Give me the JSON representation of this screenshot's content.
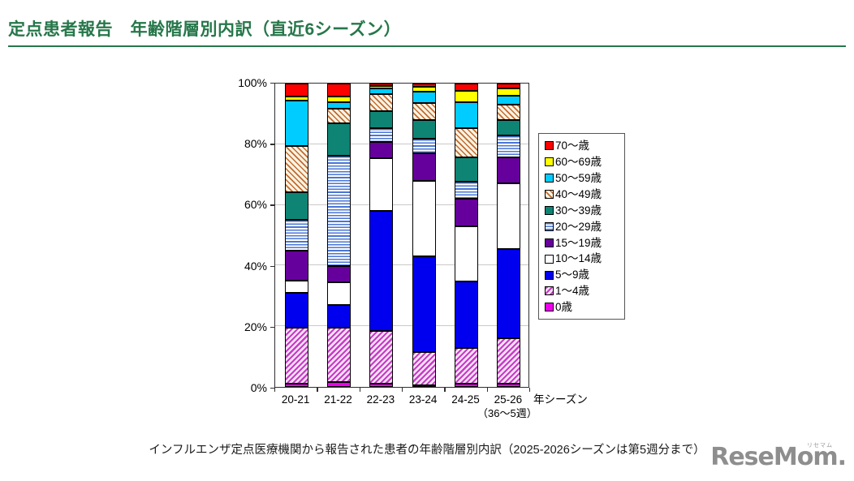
{
  "header": {
    "title": "定点患者報告　年齢階層別内訳（直近6シーズン）",
    "accent_color": "#26774A"
  },
  "chart_data": {
    "type": "bar",
    "stacked": true,
    "unit": "%",
    "ylim": [
      0,
      100
    ],
    "grid": true,
    "legend_position": "right",
    "categories": [
      "20-21",
      "21-22",
      "22-23",
      "23-24",
      "24-25",
      "25-26"
    ],
    "x_axis_suffix": "年シーズン",
    "x_axis_note": "（36～5週）",
    "y_tick_values": [
      0,
      20,
      40,
      60,
      80,
      100
    ],
    "y_tick_labels": [
      "0%",
      "20%",
      "40%",
      "60%",
      "80%",
      "100%"
    ],
    "series_bottom_to_top": [
      {
        "name": "0歳",
        "pattern": "solid",
        "color": "#EE00EE",
        "values": [
          1.2,
          1.7,
          1.0,
          0.6,
          1.2,
          1.2
        ]
      },
      {
        "name": "1～4歳",
        "pattern": "diag-down",
        "stripe": "#C73BC7",
        "bg": "#F8E4F8",
        "values": [
          18.2,
          17.7,
          17.5,
          10.9,
          11.7,
          14.8
        ]
      },
      {
        "name": "5～9歳",
        "pattern": "solid",
        "color": "#0000EE",
        "values": [
          11.6,
          7.6,
          39.5,
          31.5,
          22.0,
          29.5
        ]
      },
      {
        "name": "10～14歳",
        "pattern": "solid",
        "color": "#FFFFFF",
        "values": [
          4.0,
          7.5,
          17.5,
          25.0,
          18.0,
          21.5
        ]
      },
      {
        "name": "15～19歳",
        "pattern": "solid",
        "color": "#66009C",
        "values": [
          10.0,
          5.3,
          5.3,
          8.9,
          9.1,
          8.8
        ]
      },
      {
        "name": "20～29歳",
        "pattern": "hlines",
        "stripe": "#4A76D4",
        "bg": "#FFFFFF",
        "values": [
          10.0,
          36.4,
          4.5,
          5.0,
          5.7,
          7.0
        ]
      },
      {
        "name": "30～39歳",
        "pattern": "solid",
        "color": "#0E8474",
        "values": [
          9.2,
          10.6,
          5.5,
          6.1,
          8.0,
          5.2
        ]
      },
      {
        "name": "40～49歳",
        "pattern": "diag-up",
        "stripe": "#C06A30",
        "bg": "#FBF3E2",
        "values": [
          15.1,
          4.9,
          5.7,
          5.6,
          9.6,
          5.0
        ]
      },
      {
        "name": "50～59歳",
        "pattern": "solid",
        "color": "#00CCFF",
        "values": [
          15.0,
          2.2,
          2.0,
          3.7,
          8.6,
          3.0
        ]
      },
      {
        "name": "60～69歳",
        "pattern": "solid",
        "color": "#FFFF00",
        "values": [
          1.5,
          1.8,
          0.8,
          1.6,
          3.8,
          2.5
        ]
      },
      {
        "name": "70～歳",
        "pattern": "solid",
        "color": "#FF0000",
        "values": [
          4.2,
          4.3,
          0.7,
          1.1,
          2.3,
          1.5
        ]
      }
    ]
  },
  "caption": "インフルエンザ定点医療機関から報告された患者の年齢階層別内訳（2025-2026シーズンは第5週分まで）",
  "logo": {
    "text": "ReseMom.",
    "ruby": "リセマム"
  }
}
